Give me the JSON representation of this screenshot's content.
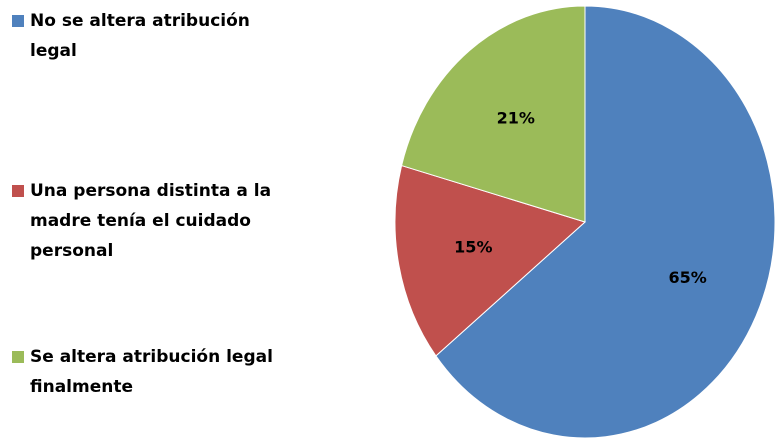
{
  "chart_data": {
    "type": "pie",
    "categories": [
      "No se altera atribución legal",
      "Una persona distinta a la madre tenía el cuidado personal",
      "Se altera atribución legal finalmente"
    ],
    "values": [
      65,
      15,
      21
    ],
    "value_labels": [
      "65%",
      "15%",
      "21%"
    ],
    "colors": [
      "#4f81bd",
      "#c0504d",
      "#9bbb59"
    ],
    "legend": "left"
  }
}
